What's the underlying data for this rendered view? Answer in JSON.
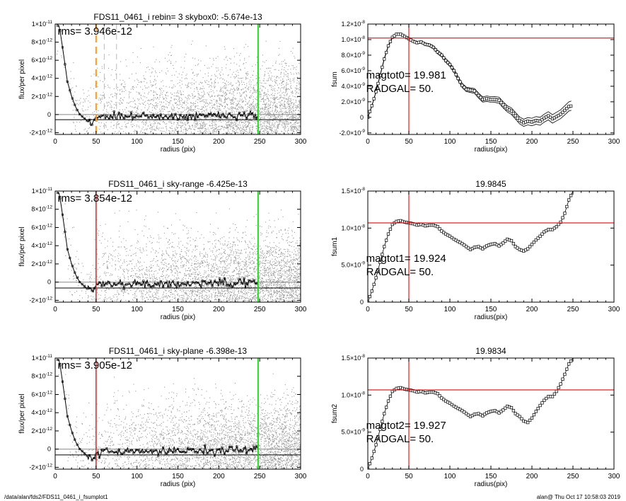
{
  "footer": {
    "path": "/data/alan/fds2/FDS11_0461_i_fsumplot1",
    "stamp": "alan@  Thu Oct 17 10:58:03 2019"
  },
  "chart_data": [
    {
      "id": "profile1",
      "type": "scatter",
      "title": "FDS11_0461_i rebin= 3    skybox0: -5.674e-13",
      "xlabel": "radius (pix)",
      "ylabel": "flux/per pixel",
      "xlim": [
        0,
        300
      ],
      "ylim": [
        -2.2e-12,
        1e-11
      ],
      "xticks": [
        0,
        50,
        100,
        150,
        200,
        250,
        300
      ],
      "yticks": [
        {
          "v": 1e-11,
          "m": "1",
          "e": "-11"
        },
        {
          "v": 8e-12,
          "m": "8",
          "e": "-12"
        },
        {
          "v": 6e-12,
          "m": "6",
          "e": "-12"
        },
        {
          "v": 4e-12,
          "m": "4",
          "e": "-12"
        },
        {
          "v": 2e-12,
          "m": "2",
          "e": "-12"
        },
        {
          "v": 0,
          "m": "0",
          "e": ""
        },
        {
          "v": -2e-12,
          "m": "-2",
          "e": "-12"
        }
      ],
      "annotation": "rms= 3.946e-12",
      "rms": 3.946e-12,
      "sky": -5.674e-13,
      "vlines": [
        {
          "x": 50,
          "color": "#ff9a1a",
          "dash": "10,6",
          "width": 2
        },
        {
          "x": 60,
          "color": "#bbbbbb",
          "dash": "8,6",
          "width": 1
        },
        {
          "x": 75,
          "color": "#bbbbbb",
          "dash": "8,6",
          "width": 1
        },
        {
          "x": 248,
          "color": "#22dd22",
          "dash": "",
          "width": 2
        }
      ],
      "hlines": [
        0,
        -5.674e-13
      ],
      "profile": {
        "x": [
          0,
          5,
          10,
          15,
          20,
          25,
          30,
          35,
          40,
          45,
          50,
          60,
          80,
          100,
          150,
          200,
          248
        ],
        "y": [
          1e-11,
          1e-11,
          7e-12,
          3.8e-12,
          2.2e-12,
          1e-12,
          2e-13,
          -2e-13,
          -6e-13,
          -9e-13,
          -2e-13,
          0,
          -1e-13,
          0,
          0,
          1e-13,
          1e-13
        ]
      }
    },
    {
      "id": "fsum0",
      "type": "line",
      "title": "",
      "xlabel": "radius(pix)",
      "ylabel": "fsum",
      "xlim": [
        0,
        300
      ],
      "ylim": [
        -2.2e-09,
        1.2e-08
      ],
      "xticks": [
        0,
        50,
        100,
        150,
        200,
        250,
        300
      ],
      "yticks": [
        {
          "v": 1.2e-08,
          "m": "1.2×10",
          "e": "-8"
        },
        {
          "v": 1e-08,
          "m": "1.0×10",
          "e": "-8"
        },
        {
          "v": 8e-09,
          "m": "8.0×10",
          "e": "-9"
        },
        {
          "v": 6e-09,
          "m": "6.0×10",
          "e": "-9"
        },
        {
          "v": 4e-09,
          "m": "4.0×10",
          "e": "-9"
        },
        {
          "v": 2e-09,
          "m": "2.0×10",
          "e": "-9"
        },
        {
          "v": 0,
          "m": "0",
          "e": ""
        },
        {
          "v": -2e-09,
          "m": "-2.0×10",
          "e": "-9"
        }
      ],
      "annotation_lines": [
        "magtot0=  19.981",
        "RADGAL=     50."
      ],
      "hline": 1.02e-08,
      "vline": 50,
      "band": 6e-10,
      "x": [
        0,
        5,
        10,
        15,
        20,
        25,
        30,
        35,
        40,
        45,
        50,
        55,
        60,
        65,
        70,
        75,
        80,
        85,
        90,
        95,
        100,
        105,
        110,
        115,
        120,
        125,
        130,
        135,
        140,
        145,
        150,
        155,
        160,
        165,
        170,
        175,
        180,
        185,
        190,
        195,
        200,
        205,
        210,
        215,
        220,
        225,
        230,
        235,
        240,
        245,
        248
      ],
      "y": [
        0,
        1.5e-09,
        3.3e-09,
        5.4e-09,
        7.5e-09,
        9.2e-09,
        1.03e-08,
        1.07e-08,
        1.07e-08,
        1.04e-08,
        1.01e-08,
        9.8e-09,
        9.6e-09,
        9.7e-09,
        9.4e-09,
        9.3e-09,
        9e-09,
        8.4e-09,
        8e-09,
        7.3e-09,
        6.8e-09,
        6e-09,
        5e-09,
        4.1e-09,
        3.6e-09,
        3.5e-09,
        3.4e-09,
        2.8e-09,
        2.3e-09,
        2.4e-09,
        2.3e-09,
        2.3e-09,
        2.2e-09,
        1.6e-09,
        1.1e-09,
        8e-10,
        2e-10,
        -4e-10,
        -7e-10,
        -5e-10,
        -6e-10,
        -4e-10,
        -5e-10,
        -1e-10,
        2e-10,
        -2e-10,
        1e-10,
        4e-10,
        9e-10,
        1.4e-09,
        1.5e-09
      ]
    },
    {
      "id": "profile2",
      "type": "scatter",
      "title": "FDS11_0461_i sky-range -6.425e-13",
      "xlabel": "radius (pix)",
      "ylabel": "flux/per pixel",
      "xlim": [
        0,
        300
      ],
      "ylim": [
        -2.2e-12,
        1e-11
      ],
      "xticks": [
        0,
        50,
        100,
        150,
        200,
        250,
        300
      ],
      "yticks": [
        {
          "v": 1e-11,
          "m": "1",
          "e": "-11"
        },
        {
          "v": 8e-12,
          "m": "8",
          "e": "-12"
        },
        {
          "v": 6e-12,
          "m": "6",
          "e": "-12"
        },
        {
          "v": 4e-12,
          "m": "4",
          "e": "-12"
        },
        {
          "v": 2e-12,
          "m": "2",
          "e": "-12"
        },
        {
          "v": 0,
          "m": "0",
          "e": ""
        },
        {
          "v": -2e-12,
          "m": "-2",
          "e": "-12"
        }
      ],
      "annotation": "rms= 3.854e-12",
      "rms": 3.854e-12,
      "sky": -6.425e-13,
      "vlines": [
        {
          "x": 50,
          "color": "#e02020",
          "dash": "",
          "width": 1.5
        },
        {
          "x": 248,
          "color": "#22dd22",
          "dash": "",
          "width": 2
        }
      ],
      "hlines": [
        0,
        -6.425e-13
      ],
      "profile": {
        "x": [
          0,
          5,
          10,
          15,
          20,
          25,
          30,
          35,
          40,
          45,
          50,
          60,
          80,
          100,
          150,
          200,
          248
        ],
        "y": [
          1e-11,
          1e-11,
          7e-12,
          3.8e-12,
          2.2e-12,
          1e-12,
          2e-13,
          -2e-13,
          -6e-13,
          -9e-13,
          -2e-13,
          0,
          -1e-13,
          0,
          0,
          1e-13,
          1e-13
        ]
      }
    },
    {
      "id": "fsum1",
      "type": "line",
      "title": "19.9845",
      "xlabel": "radius(pix)",
      "ylabel": "fsum1",
      "xlim": [
        0,
        300
      ],
      "ylim": [
        0,
        1.5e-08
      ],
      "xticks": [
        0,
        50,
        100,
        150,
        200,
        250,
        300
      ],
      "yticks": [
        {
          "v": 1.5e-08,
          "m": "1.5×10",
          "e": "-8"
        },
        {
          "v": 1e-08,
          "m": "1.0×10",
          "e": "-8"
        },
        {
          "v": 5e-09,
          "m": "5.0×10",
          "e": "-9"
        },
        {
          "v": 0,
          "m": "0",
          "e": ""
        }
      ],
      "annotation_lines": [
        "magtot1=  19.924",
        "RADGAL=     50."
      ],
      "hline": 1.07e-08,
      "vline": 50,
      "band": 0,
      "x": [
        0,
        5,
        10,
        15,
        20,
        25,
        30,
        35,
        40,
        45,
        50,
        55,
        60,
        65,
        70,
        75,
        80,
        85,
        90,
        95,
        100,
        105,
        110,
        115,
        120,
        125,
        130,
        135,
        140,
        145,
        150,
        155,
        160,
        165,
        170,
        175,
        180,
        185,
        190,
        195,
        200,
        205,
        210,
        215,
        220,
        225,
        230,
        235,
        240,
        245,
        250
      ],
      "y": [
        0,
        1.5e-09,
        3.3e-09,
        5.4e-09,
        7.5e-09,
        9.2e-09,
        1.05e-08,
        1.09e-08,
        1.1e-08,
        1.08e-08,
        1.07e-08,
        1.06e-08,
        1.04e-08,
        1.05e-08,
        1.03e-08,
        1.04e-08,
        1.04e-08,
        1.02e-08,
        9.6e-09,
        9.2e-09,
        8.9e-09,
        8.5e-09,
        8.2e-09,
        7.9e-09,
        7.5e-09,
        7.1e-09,
        7.4e-09,
        7.5e-09,
        7.2e-09,
        7.6e-09,
        7.8e-09,
        7.9e-09,
        7.6e-09,
        8e-09,
        8.5e-09,
        8.3e-09,
        7.5e-09,
        7.1e-09,
        6.9e-09,
        7.2e-09,
        7.8e-09,
        8.4e-09,
        8.9e-09,
        9.5e-09,
        9.8e-09,
        9.8e-09,
        1.02e-08,
        1.08e-08,
        1.2e-08,
        1.38e-08,
        1.5e-08
      ]
    },
    {
      "id": "profile3",
      "type": "scatter",
      "title": "FDS11_0461_i sky-plane -6.398e-13",
      "xlabel": "radius (pix)",
      "ylabel": "flux/per pixel",
      "xlim": [
        0,
        300
      ],
      "ylim": [
        -2.2e-12,
        1e-11
      ],
      "xticks": [
        0,
        50,
        100,
        150,
        200,
        250,
        300
      ],
      "yticks": [
        {
          "v": 1e-11,
          "m": "1",
          "e": "-11"
        },
        {
          "v": 8e-12,
          "m": "8",
          "e": "-12"
        },
        {
          "v": 6e-12,
          "m": "6",
          "e": "-12"
        },
        {
          "v": 4e-12,
          "m": "4",
          "e": "-12"
        },
        {
          "v": 2e-12,
          "m": "2",
          "e": "-12"
        },
        {
          "v": 0,
          "m": "0",
          "e": ""
        },
        {
          "v": -2e-12,
          "m": "-2",
          "e": "-12"
        }
      ],
      "annotation": "rms= 3.905e-12",
      "rms": 3.905e-12,
      "sky": -6.398e-13,
      "vlines": [
        {
          "x": 50,
          "color": "#e02020",
          "dash": "",
          "width": 1.5
        },
        {
          "x": 248,
          "color": "#22dd22",
          "dash": "",
          "width": 2
        }
      ],
      "hlines": [
        0,
        -6.398e-13
      ],
      "profile": {
        "x": [
          0,
          5,
          10,
          15,
          20,
          25,
          30,
          35,
          40,
          45,
          50,
          60,
          80,
          100,
          150,
          200,
          248
        ],
        "y": [
          1e-11,
          1e-11,
          7e-12,
          3.8e-12,
          2.2e-12,
          1e-12,
          2e-13,
          -2e-13,
          -6e-13,
          -9e-13,
          -2e-13,
          0,
          -1e-13,
          0,
          0,
          1e-13,
          1e-13
        ]
      }
    },
    {
      "id": "fsum2",
      "type": "line",
      "title": "19.9834",
      "xlabel": "radius(pix)",
      "ylabel": "fsum2",
      "xlim": [
        0,
        300
      ],
      "ylim": [
        0,
        1.5e-08
      ],
      "xticks": [
        0,
        50,
        100,
        150,
        200,
        250,
        300
      ],
      "yticks": [
        {
          "v": 1.5e-08,
          "m": "1.5×10",
          "e": "-8"
        },
        {
          "v": 1e-08,
          "m": "1.0×10",
          "e": "-8"
        },
        {
          "v": 5e-09,
          "m": "5.0×10",
          "e": "-9"
        },
        {
          "v": 0,
          "m": "0",
          "e": ""
        }
      ],
      "annotation_lines": [
        "magtot2=  19.927",
        "RADGAL=     50."
      ],
      "hline": 1.07e-08,
      "vline": 50,
      "band": 0,
      "x": [
        0,
        5,
        10,
        15,
        20,
        25,
        30,
        35,
        40,
        45,
        50,
        55,
        60,
        65,
        70,
        75,
        80,
        85,
        90,
        95,
        100,
        105,
        110,
        115,
        120,
        125,
        130,
        135,
        140,
        145,
        150,
        155,
        160,
        165,
        170,
        175,
        180,
        185,
        190,
        195,
        200,
        205,
        210,
        215,
        220,
        225,
        230,
        235,
        240,
        245,
        250
      ],
      "y": [
        0,
        1.5e-09,
        3.3e-09,
        5.4e-09,
        7.5e-09,
        9.2e-09,
        1.05e-08,
        1.09e-08,
        1.1e-08,
        1.08e-08,
        1.07e-08,
        1.06e-08,
        1.04e-08,
        1.05e-08,
        1.03e-08,
        1.04e-08,
        1.04e-08,
        1.02e-08,
        9.6e-09,
        9.2e-09,
        8.9e-09,
        8.5e-09,
        8.2e-09,
        7.9e-09,
        7.5e-09,
        7.1e-09,
        7.4e-09,
        7.5e-09,
        7.2e-09,
        7.6e-09,
        7.8e-09,
        7.9e-09,
        7.6e-09,
        8e-09,
        8.5e-09,
        8.3e-09,
        7.5e-09,
        7.1e-09,
        6.5e-09,
        6.3e-09,
        6.9e-09,
        7.8e-09,
        8.6e-09,
        9.3e-09,
        9.8e-09,
        9.8e-09,
        1.05e-08,
        1.15e-08,
        1.28e-08,
        1.42e-08,
        1.5e-08
      ]
    }
  ]
}
